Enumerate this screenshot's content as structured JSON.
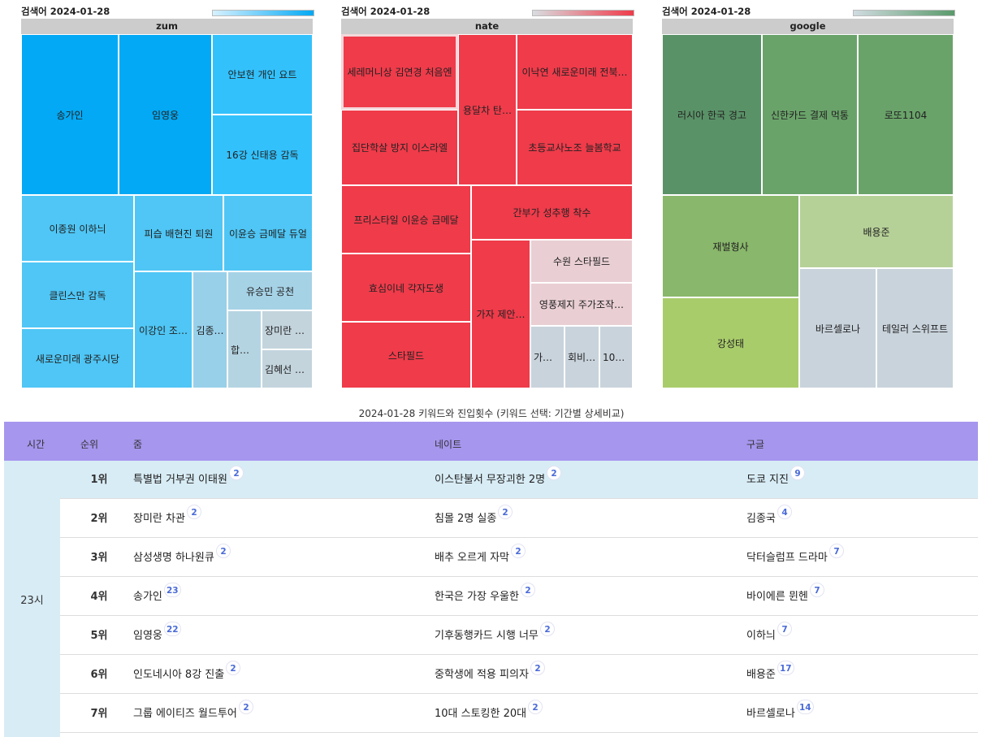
{
  "treemaps": [
    {
      "label": "검색어 2024-01-28",
      "header": "zum",
      "legend_gradient": [
        "#d6f1ff",
        "#03a9f4"
      ],
      "tiles": [
        {
          "label": "송가인",
          "color": "#03a9f4"
        },
        {
          "label": "임영웅",
          "color": "#03a9f4"
        },
        {
          "label": "안보현 개인 요트",
          "color": "#33c1fc"
        },
        {
          "label": "16강 신태용 감독",
          "color": "#33c1fc"
        },
        {
          "label": "이종원 이하늬",
          "color": "#4fc6f5"
        },
        {
          "label": "피습 배현진 퇴원",
          "color": "#4fc6f5"
        },
        {
          "label": "이윤승 금메달 듀얼",
          "color": "#4fc6f5"
        },
        {
          "label": "클린스만 감독",
          "color": "#4fc6f5"
        },
        {
          "label": "새로운미래 광주시당",
          "color": "#4fc6f5"
        },
        {
          "label": "이강인 조…",
          "color": "#4fc6f5"
        },
        {
          "label": "김종…",
          "color": "#98d0ea"
        },
        {
          "label": "유승민 공천",
          "color": "#a6d2e6"
        },
        {
          "label": "합참…",
          "color": "#b5d4e2"
        },
        {
          "label": "장미란 차…",
          "color": "#c3d4dd"
        },
        {
          "label": "김혜선 산…",
          "color": "#c3d4dd"
        }
      ]
    },
    {
      "label": "검색어 2024-01-28",
      "header": "nate",
      "legend_gradient": [
        "#d8dde0",
        "#ef3b4a"
      ],
      "tiles": [
        {
          "label": "세레머니상 김연경 처음엔",
          "color": "#ef3b4a"
        },
        {
          "label": "용달차 탄…",
          "color": "#ef3b4a"
        },
        {
          "label": "이낙연 새로운미래 전북…",
          "color": "#ef3b4a"
        },
        {
          "label": "집단학살 방지 이스라엘",
          "color": "#ef3b4a"
        },
        {
          "label": "초등교사노조 늘봄학교",
          "color": "#ef3b4a"
        },
        {
          "label": "프리스타일 이윤승 금메달",
          "color": "#ef3b4a"
        },
        {
          "label": "간부가 성추행 착수",
          "color": "#ef3b4a"
        },
        {
          "label": "효심이네 각자도생",
          "color": "#ef3b4a"
        },
        {
          "label": "가자 제안…",
          "color": "#ef3b4a"
        },
        {
          "label": "수원 스타필드",
          "color": "#e9cfd4"
        },
        {
          "label": "영풍제지 주가조작…",
          "color": "#e9cfd4"
        },
        {
          "label": "스타필드",
          "color": "#ef3b4a"
        },
        {
          "label": "가난…",
          "color": "#c9d3dc"
        },
        {
          "label": "회비 l…",
          "color": "#c9d3dc"
        },
        {
          "label": "100…",
          "color": "#c9d3dc"
        }
      ]
    },
    {
      "label": "검색어 2024-01-28",
      "header": "google",
      "legend_gradient": [
        "#d0dbe0",
        "#5a9a6b"
      ],
      "tiles": [
        {
          "label": "러시아 한국 경고",
          "color": "#5a9267"
        },
        {
          "label": "신한카드 결제 먹통",
          "color": "#6aa36a"
        },
        {
          "label": "로또1104",
          "color": "#6aa36a"
        },
        {
          "label": "재벌형사",
          "color": "#89b76b"
        },
        {
          "label": "배용준",
          "color": "#b6d198"
        },
        {
          "label": "강성태",
          "color": "#a9cc6b"
        },
        {
          "label": "바르셀로나",
          "color": "#c9d3dc"
        },
        {
          "label": "테일러 스위프트",
          "color": "#c9d3dc"
        }
      ]
    }
  ],
  "caption": "2024-01-28 키워드와 진입횟수 (키워드 선택: 기간별 상세비교)",
  "table": {
    "headers": {
      "time": "시간",
      "rank": "순위",
      "zum": "줌",
      "nate": "네이트",
      "google": "구글"
    },
    "time": "23시",
    "rows": [
      {
        "rank": "1위",
        "zum": "특별법 거부권 이태원",
        "zum_n": "2",
        "nate": "이스탄불서 무장괴한 2명",
        "nate_n": "2",
        "google": "도쿄 지진",
        "google_n": "9"
      },
      {
        "rank": "2위",
        "zum": "장미란 차관",
        "zum_n": "2",
        "nate": "침몰 2명 실종",
        "nate_n": "2",
        "google": "김종국",
        "google_n": "4"
      },
      {
        "rank": "3위",
        "zum": "삼성생명 하나원큐",
        "zum_n": "2",
        "nate": "배추 오르게 자막",
        "nate_n": "2",
        "google": "닥터슬럼프 드라마",
        "google_n": "7"
      },
      {
        "rank": "4위",
        "zum": "송가인",
        "zum_n": "23",
        "nate": "한국은 가장 우울한",
        "nate_n": "2",
        "google": "바이에른 뮌헨",
        "google_n": "7"
      },
      {
        "rank": "5위",
        "zum": "임영웅",
        "zum_n": "22",
        "nate": "기후동행카드 시행 너무",
        "nate_n": "2",
        "google": "이하늬",
        "google_n": "7"
      },
      {
        "rank": "6위",
        "zum": "인도네시아 8강 진출",
        "zum_n": "2",
        "nate": "중학생에 적용 피의자",
        "nate_n": "2",
        "google": "배용준",
        "google_n": "17"
      },
      {
        "rank": "7위",
        "zum": "그룹 에이티즈 월드투어",
        "zum_n": "2",
        "nate": "10대 스토킹한 20대",
        "nate_n": "2",
        "google": "바르셀로나",
        "google_n": "14"
      }
    ]
  }
}
